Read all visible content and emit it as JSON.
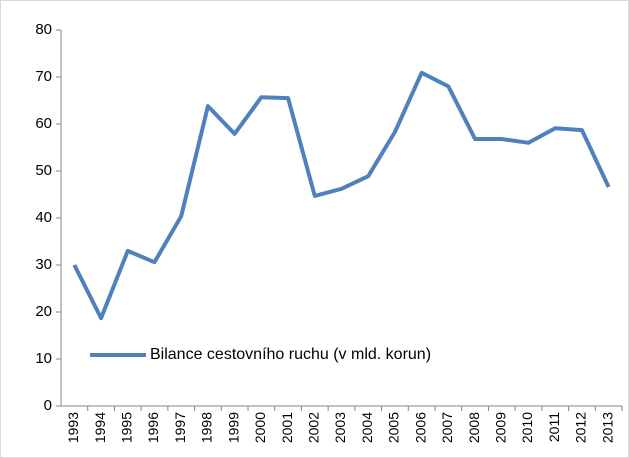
{
  "chart_data": {
    "type": "line",
    "categories": [
      "1993",
      "1994",
      "1995",
      "1996",
      "1997",
      "1998",
      "1999",
      "2000",
      "2001",
      "2002",
      "2003",
      "2004",
      "2005",
      "2006",
      "2007",
      "2008",
      "2009",
      "2010",
      "2011",
      "2012",
      "2013"
    ],
    "series": [
      {
        "name": "Bilance cestovního ruchu (v mld. korun)",
        "color": "#4f81bd",
        "values": [
          30,
          18.7,
          33,
          30.6,
          40.4,
          63.8,
          57.9,
          65.7,
          65.5,
          44.7,
          46.2,
          48.9,
          58.3,
          70.9,
          68,
          56.8,
          56.8,
          56,
          59.1,
          58.7,
          46.6
        ]
      }
    ],
    "ylim": [
      0,
      80
    ],
    "yticks": [
      0,
      10,
      20,
      30,
      40,
      50,
      60,
      70,
      80
    ],
    "grid": false,
    "legend": "lower left"
  }
}
